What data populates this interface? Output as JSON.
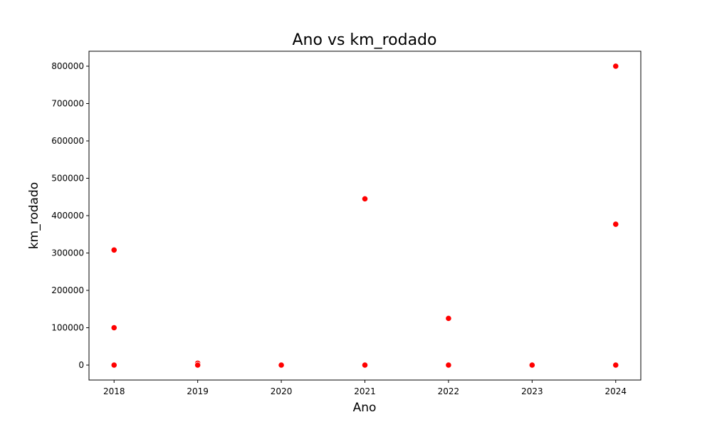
{
  "chart_data": {
    "type": "scatter",
    "title": "Ano vs km_rodado",
    "xlabel": "Ano",
    "ylabel": "km_rodado",
    "x_ticks": [
      2018,
      2019,
      2020,
      2021,
      2022,
      2023,
      2024
    ],
    "y_ticks": [
      0,
      100000,
      200000,
      300000,
      400000,
      500000,
      600000,
      700000,
      800000
    ],
    "xlim": [
      2017.7,
      2024.3
    ],
    "ylim": [
      -40000,
      840000
    ],
    "grid": false,
    "legend": "none",
    "marker_color": "#ff0000",
    "points": [
      {
        "x": 2018,
        "y": 308000
      },
      {
        "x": 2018,
        "y": 100000
      },
      {
        "x": 2018,
        "y": 0
      },
      {
        "x": 2019,
        "y": 5000
      },
      {
        "x": 2019,
        "y": 0
      },
      {
        "x": 2020,
        "y": 0
      },
      {
        "x": 2021,
        "y": 445000
      },
      {
        "x": 2021,
        "y": 0
      },
      {
        "x": 2022,
        "y": 125000
      },
      {
        "x": 2022,
        "y": 0
      },
      {
        "x": 2023,
        "y": 0
      },
      {
        "x": 2024,
        "y": 800000
      },
      {
        "x": 2024,
        "y": 377000
      },
      {
        "x": 2024,
        "y": 0
      }
    ]
  }
}
